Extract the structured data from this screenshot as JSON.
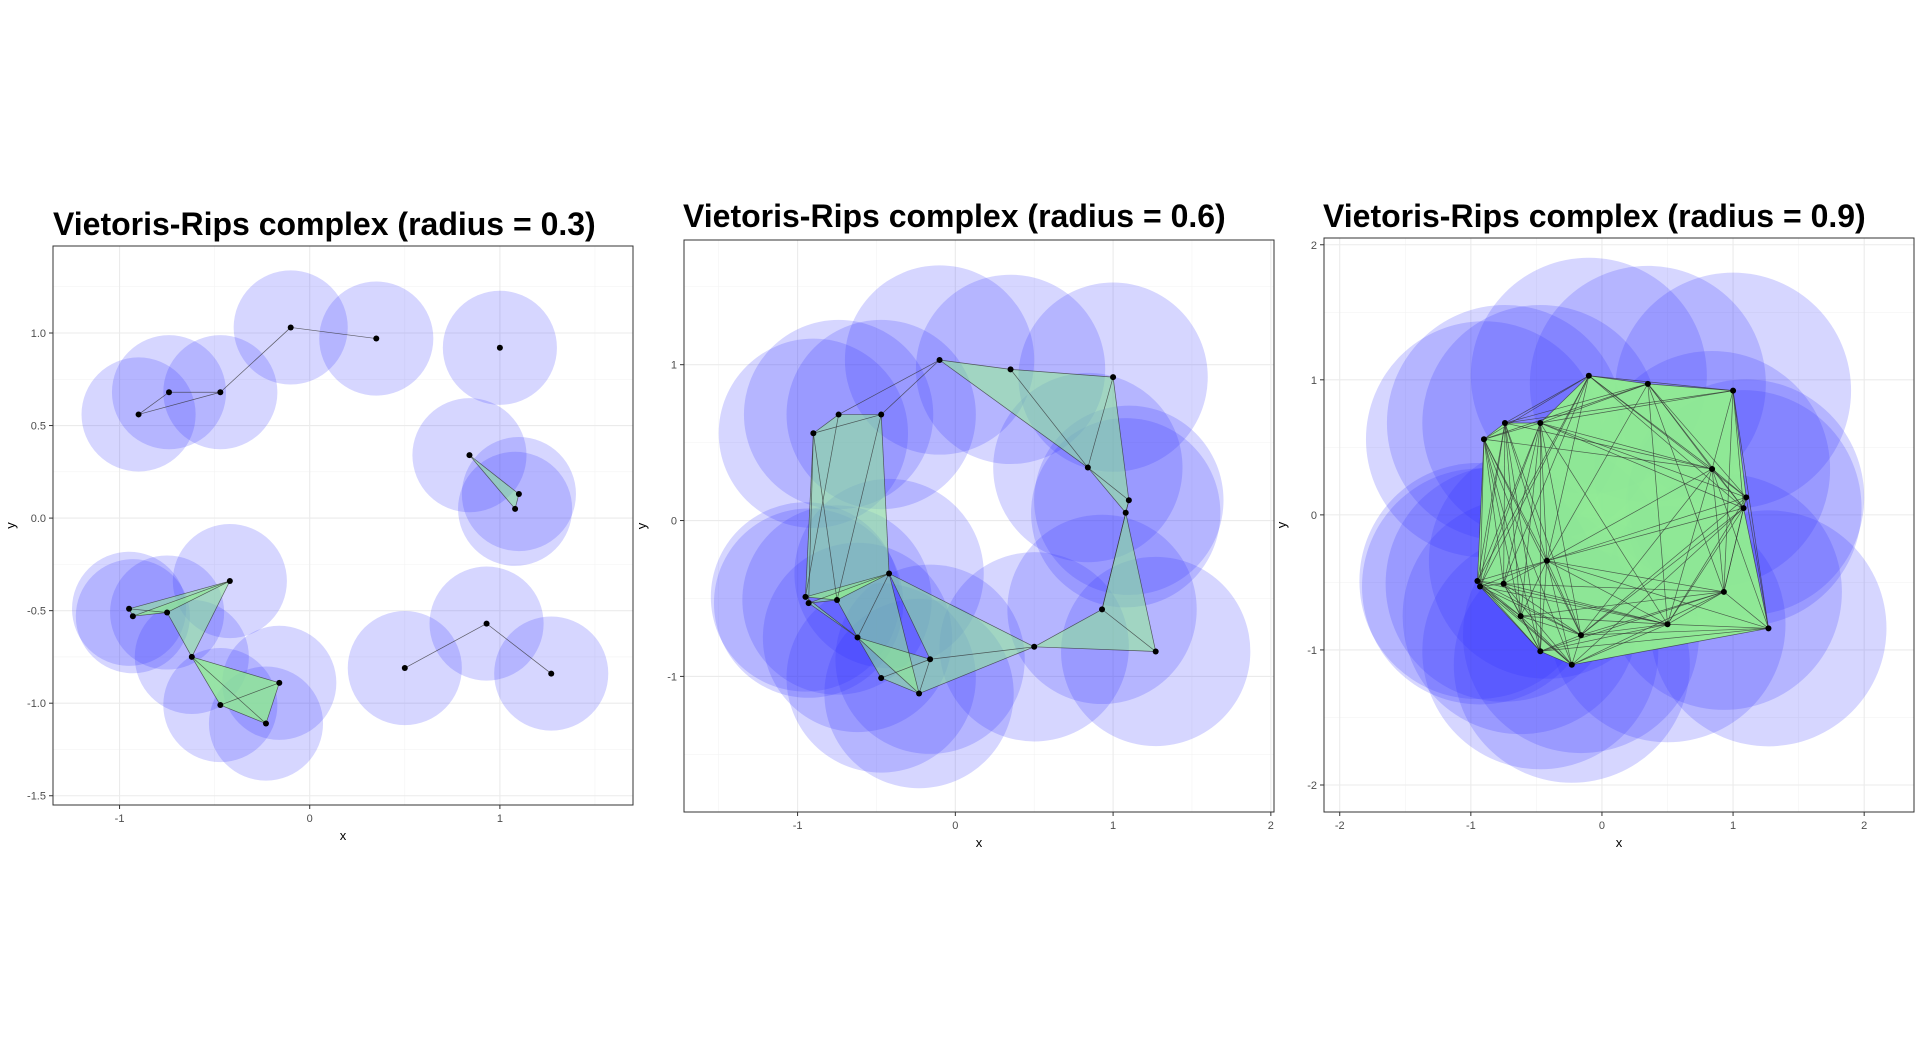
{
  "chart_data": [
    {
      "type": "scatter",
      "title": "Vietoris-Rips complex (radius = 0.3)",
      "xlabel": "x",
      "ylabel": "y",
      "radius": 0.3,
      "xlim": [
        -1.35,
        1.7
      ],
      "ylim": [
        -1.55,
        1.47
      ],
      "xticks": [
        -1,
        0,
        1
      ],
      "xtick_labels": [
        "-1",
        "0",
        "1"
      ],
      "yticks": [
        -1.5,
        -1.0,
        -0.5,
        0.0,
        0.5,
        1.0
      ],
      "ytick_labels": [
        "-1.5",
        "-1.0",
        "-0.5",
        "0.0",
        "0.5",
        "1.0"
      ],
      "grid": true,
      "points": [
        [
          -0.1,
          1.03
        ],
        [
          0.35,
          0.97
        ],
        [
          1.0,
          0.92
        ],
        [
          -0.74,
          0.68
        ],
        [
          -0.47,
          0.68
        ],
        [
          -0.9,
          0.56
        ],
        [
          0.84,
          0.34
        ],
        [
          1.1,
          0.13
        ],
        [
          1.08,
          0.05
        ],
        [
          -0.42,
          -0.34
        ],
        [
          -0.95,
          -0.49
        ],
        [
          -0.93,
          -0.53
        ],
        [
          -0.75,
          -0.51
        ],
        [
          -0.62,
          -0.75
        ],
        [
          -0.16,
          -0.89
        ],
        [
          -0.47,
          -1.01
        ],
        [
          -0.23,
          -1.11
        ],
        [
          0.5,
          -0.81
        ],
        [
          0.93,
          -0.57
        ],
        [
          1.27,
          -0.84
        ]
      ],
      "edges": [
        [
          0,
          1
        ],
        [
          0,
          4
        ],
        [
          3,
          4
        ],
        [
          4,
          5
        ],
        [
          3,
          5
        ],
        [
          6,
          7
        ],
        [
          6,
          8
        ],
        [
          7,
          8
        ],
        [
          9,
          10
        ],
        [
          9,
          11
        ],
        [
          9,
          12
        ],
        [
          9,
          13
        ],
        [
          10,
          11
        ],
        [
          10,
          12
        ],
        [
          11,
          12
        ],
        [
          12,
          13
        ],
        [
          13,
          14
        ],
        [
          13,
          15
        ],
        [
          13,
          16
        ],
        [
          14,
          15
        ],
        [
          14,
          16
        ],
        [
          15,
          16
        ],
        [
          17,
          18
        ],
        [
          18,
          19
        ]
      ],
      "triangles": [
        [
          6,
          7,
          8
        ],
        [
          9,
          10,
          12
        ],
        [
          9,
          11,
          12
        ],
        [
          10,
          11,
          12
        ],
        [
          9,
          12,
          13
        ],
        [
          13,
          14,
          15
        ],
        [
          13,
          14,
          16
        ],
        [
          14,
          15,
          16
        ],
        [
          13,
          15,
          16
        ]
      ]
    },
    {
      "type": "scatter",
      "title": "Vietoris-Rips complex (radius = 0.6)",
      "xlabel": "x",
      "ylabel": "y",
      "radius": 0.6,
      "xlim": [
        -1.72,
        2.02
      ],
      "ylim": [
        -1.87,
        1.8
      ],
      "xticks": [
        -1,
        0,
        1,
        2
      ],
      "xtick_labels": [
        "-1",
        "0",
        "1",
        "2"
      ],
      "yticks": [
        -1,
        0,
        1
      ],
      "ytick_labels": [
        "-1",
        "0",
        "1"
      ],
      "grid": true,
      "points": [
        [
          -0.1,
          1.03
        ],
        [
          0.35,
          0.97
        ],
        [
          1.0,
          0.92
        ],
        [
          -0.74,
          0.68
        ],
        [
          -0.47,
          0.68
        ],
        [
          -0.9,
          0.56
        ],
        [
          0.84,
          0.34
        ],
        [
          1.1,
          0.13
        ],
        [
          1.08,
          0.05
        ],
        [
          -0.42,
          -0.34
        ],
        [
          -0.95,
          -0.49
        ],
        [
          -0.93,
          -0.53
        ],
        [
          -0.75,
          -0.51
        ],
        [
          -0.62,
          -0.75
        ],
        [
          -0.16,
          -0.89
        ],
        [
          -0.47,
          -1.01
        ],
        [
          -0.23,
          -1.11
        ],
        [
          0.5,
          -0.81
        ],
        [
          0.93,
          -0.57
        ],
        [
          1.27,
          -0.84
        ]
      ],
      "edges": [
        [
          0,
          1
        ],
        [
          0,
          4
        ],
        [
          0,
          3
        ],
        [
          1,
          2
        ],
        [
          1,
          6
        ],
        [
          0,
          6
        ],
        [
          2,
          6
        ],
        [
          2,
          7
        ],
        [
          6,
          7
        ],
        [
          6,
          8
        ],
        [
          7,
          8
        ],
        [
          3,
          4
        ],
        [
          3,
          5
        ],
        [
          4,
          5
        ],
        [
          5,
          10
        ],
        [
          5,
          11
        ],
        [
          5,
          12
        ],
        [
          3,
          10
        ],
        [
          4,
          9
        ],
        [
          4,
          12
        ],
        [
          9,
          10
        ],
        [
          9,
          11
        ],
        [
          9,
          12
        ],
        [
          9,
          13
        ],
        [
          9,
          14
        ],
        [
          9,
          16
        ],
        [
          9,
          17
        ],
        [
          10,
          11
        ],
        [
          10,
          12
        ],
        [
          10,
          13
        ],
        [
          11,
          12
        ],
        [
          11,
          13
        ],
        [
          12,
          13
        ],
        [
          13,
          15
        ],
        [
          13,
          16
        ],
        [
          13,
          14
        ],
        [
          14,
          15
        ],
        [
          14,
          16
        ],
        [
          15,
          16
        ],
        [
          14,
          17
        ],
        [
          16,
          17
        ],
        [
          17,
          18
        ],
        [
          17,
          19
        ],
        [
          18,
          19
        ],
        [
          8,
          18
        ],
        [
          8,
          19
        ],
        [
          7,
          18
        ]
      ],
      "triangles": [
        [
          0,
          1,
          6
        ],
        [
          1,
          2,
          6
        ],
        [
          2,
          6,
          7
        ],
        [
          6,
          7,
          8
        ],
        [
          3,
          4,
          5
        ],
        [
          4,
          5,
          12
        ],
        [
          5,
          10,
          12
        ],
        [
          4,
          9,
          12
        ],
        [
          9,
          10,
          12
        ],
        [
          9,
          11,
          12
        ],
        [
          9,
          12,
          13
        ],
        [
          10,
          11,
          13
        ],
        [
          9,
          13,
          16
        ],
        [
          13,
          14,
          16
        ],
        [
          13,
          15,
          16
        ],
        [
          9,
          14,
          17
        ],
        [
          14,
          16,
          17
        ],
        [
          17,
          18,
          19
        ],
        [
          8,
          18,
          19
        ],
        [
          7,
          8,
          18
        ]
      ]
    },
    {
      "type": "scatter",
      "title": "Vietoris-Rips complex (radius = 0.9)",
      "xlabel": "x",
      "ylabel": "y",
      "radius": 0.9,
      "xlim": [
        -2.12,
        2.38
      ],
      "ylim": [
        -2.2,
        2.05
      ],
      "xticks": [
        -2,
        -1,
        0,
        1,
        2
      ],
      "xtick_labels": [
        "-2",
        "-1",
        "0",
        "1",
        "2"
      ],
      "yticks": [
        -2,
        -1,
        0,
        1,
        2
      ],
      "ytick_labels": [
        "-2",
        "-1",
        "0",
        "1",
        "2"
      ],
      "grid": true,
      "points": [
        [
          -0.1,
          1.03
        ],
        [
          0.35,
          0.97
        ],
        [
          1.0,
          0.92
        ],
        [
          -0.74,
          0.68
        ],
        [
          -0.47,
          0.68
        ],
        [
          -0.9,
          0.56
        ],
        [
          0.84,
          0.34
        ],
        [
          1.1,
          0.13
        ],
        [
          1.08,
          0.05
        ],
        [
          -0.42,
          -0.34
        ],
        [
          -0.95,
          -0.49
        ],
        [
          -0.93,
          -0.53
        ],
        [
          -0.75,
          -0.51
        ],
        [
          -0.62,
          -0.75
        ],
        [
          -0.16,
          -0.89
        ],
        [
          -0.47,
          -1.01
        ],
        [
          -0.23,
          -1.11
        ],
        [
          0.5,
          -0.81
        ],
        [
          0.93,
          -0.57
        ],
        [
          1.27,
          -0.84
        ]
      ],
      "hull": [
        0,
        1,
        2,
        7,
        8,
        19,
        16,
        15,
        11,
        10,
        5,
        3,
        4
      ]
    }
  ],
  "colors": {
    "ball_fill": "#3333ff",
    "simplex_fill": "#90ee90",
    "edge": "#333333",
    "point": "#000000",
    "grid": "#ebebeb",
    "axis_text": "#4d4d4d"
  }
}
